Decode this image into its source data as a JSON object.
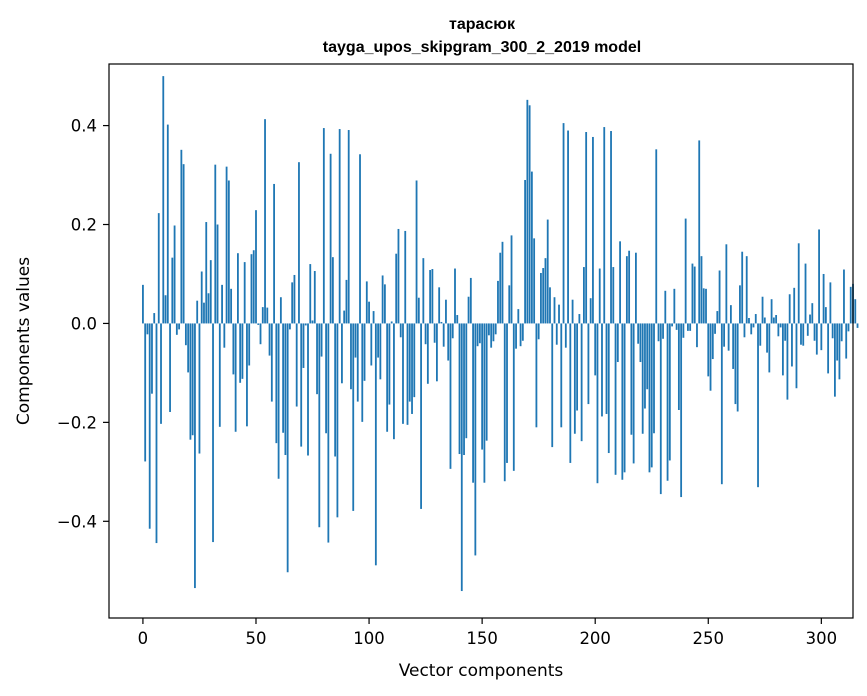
{
  "chart_data": {
    "type": "bar",
    "title": "тарасюк",
    "subtitle": "tayga_upos_skipgram_300_2_2019 model",
    "xlabel": "Vector components",
    "ylabel": "Components values",
    "xlim": [
      -15,
      314
    ],
    "ylim": [
      -0.5955,
      0.5245
    ],
    "xticks": [
      0,
      50,
      100,
      150,
      200,
      250,
      300
    ],
    "yticks": [
      -0.4,
      -0.2,
      0.0,
      0.2,
      0.4
    ],
    "ytick_labels": [
      "−0.4",
      "−0.2",
      "0.0",
      "0.2",
      "0.4"
    ],
    "bar_color": "#1f77b4",
    "grid": false,
    "values": [
      0.078,
      -0.279,
      -0.022,
      -0.415,
      -0.142,
      0.021,
      -0.444,
      0.223,
      -0.203,
      0.5,
      0.057,
      0.402,
      -0.179,
      0.133,
      0.198,
      -0.023,
      -0.012,
      0.351,
      0.322,
      -0.044,
      -0.099,
      -0.235,
      -0.226,
      -0.535,
      0.046,
      -0.263,
      0.105,
      0.042,
      0.205,
      0.061,
      0.128,
      -0.442,
      0.321,
      0.2,
      -0.209,
      0.078,
      -0.049,
      0.317,
      0.289,
      0.07,
      -0.103,
      -0.219,
      0.142,
      -0.12,
      -0.112,
      0.124,
      -0.208,
      -0.085,
      0.14,
      0.148,
      0.229,
      -0.003,
      -0.042,
      0.033,
      0.413,
      0.032,
      -0.065,
      -0.158,
      0.282,
      -0.242,
      -0.314,
      0.053,
      -0.221,
      -0.266,
      -0.503,
      -0.012,
      0.083,
      0.098,
      -0.168,
      0.326,
      -0.249,
      -0.09,
      -0.004,
      -0.267,
      0.12,
      0.006,
      0.106,
      -0.143,
      -0.412,
      -0.067,
      0.395,
      -0.222,
      -0.443,
      0.343,
      0.134,
      -0.269,
      -0.392,
      0.393,
      -0.121,
      0.026,
      0.088,
      0.391,
      -0.133,
      -0.379,
      -0.069,
      -0.158,
      0.342,
      -0.199,
      -0.116,
      0.085,
      0.044,
      -0.085,
      0.025,
      -0.489,
      -0.069,
      -0.113,
      0.097,
      0.079,
      -0.219,
      -0.164,
      0.004,
      -0.234,
      0.141,
      0.191,
      -0.028,
      -0.203,
      0.187,
      -0.205,
      -0.158,
      -0.183,
      -0.149,
      0.289,
      0.052,
      -0.375,
      0.132,
      -0.042,
      -0.122,
      0.108,
      0.11,
      -0.039,
      -0.117,
      0.073,
      0.003,
      -0.047,
      0.048,
      -0.075,
      -0.294,
      -0.03,
      0.111,
      0.017,
      -0.264,
      -0.541,
      -0.266,
      -0.232,
      0.054,
      0.092,
      -0.322,
      -0.469,
      -0.046,
      -0.04,
      -0.255,
      -0.322,
      -0.237,
      -0.024,
      -0.049,
      -0.036,
      -0.022,
      0.086,
      0.143,
      0.165,
      -0.319,
      -0.282,
      0.077,
      0.178,
      -0.298,
      -0.051,
      0.029,
      -0.046,
      -0.035,
      0.29,
      0.452,
      0.441,
      0.307,
      0.172,
      -0.21,
      -0.032,
      0.102,
      0.112,
      0.132,
      0.21,
      0.073,
      -0.25,
      0.053,
      -0.043,
      0.038,
      -0.21,
      0.405,
      -0.049,
      0.39,
      -0.282,
      0.048,
      -0.223,
      -0.176,
      0.019,
      -0.238,
      0.114,
      0.387,
      -0.163,
      0.051,
      0.377,
      -0.105,
      -0.323,
      0.111,
      -0.188,
      0.397,
      -0.183,
      -0.262,
      0.389,
      0.114,
      -0.306,
      -0.078,
      0.166,
      -0.316,
      -0.301,
      0.136,
      0.147,
      -0.225,
      -0.283,
      0.143,
      -0.041,
      -0.078,
      -0.223,
      -0.172,
      -0.133,
      -0.301,
      -0.291,
      -0.222,
      0.352,
      -0.036,
      -0.345,
      -0.031,
      0.066,
      -0.318,
      -0.277,
      -0.006,
      0.07,
      -0.013,
      -0.175,
      -0.351,
      -0.029,
      0.212,
      -0.015,
      -0.015,
      0.121,
      0.115,
      -0.048,
      0.37,
      0.136,
      0.071,
      0.07,
      -0.107,
      -0.136,
      -0.072,
      -0.021,
      0.025,
      0.107,
      -0.325,
      -0.047,
      0.16,
      -0.055,
      0.037,
      -0.092,
      -0.163,
      -0.178,
      0.077,
      0.145,
      -0.028,
      0.136,
      0.011,
      -0.022,
      -0.008,
      0.019,
      -0.331,
      -0.045,
      0.054,
      0.012,
      -0.059,
      -0.099,
      0.049,
      0.012,
      0.017,
      -0.026,
      -0.008,
      -0.105,
      -0.035,
      -0.154,
      0.059,
      -0.087,
      0.072,
      -0.131,
      0.162,
      -0.043,
      -0.045,
      0.121,
      -0.025,
      0.018,
      0.041,
      -0.035,
      -0.063,
      0.19,
      -0.054,
      0.1,
      0.033,
      -0.101,
      0.083,
      -0.03,
      -0.148,
      -0.075,
      -0.113,
      -0.036,
      0.109,
      -0.071,
      -0.016,
      0.074,
      0.08,
      0.049,
      -0.009
    ]
  }
}
